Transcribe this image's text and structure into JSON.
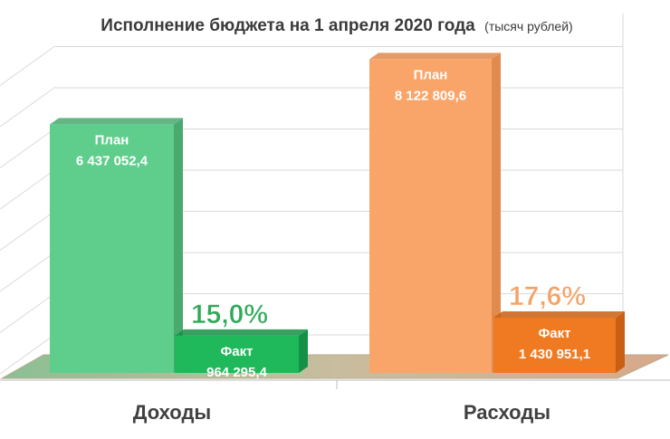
{
  "chart_data": {
    "type": "bar",
    "title": "Исполнение бюджета на 1 апреля 2020 года",
    "subtitle": "(тысяч рублей)",
    "categories": [
      "Доходы",
      "Расходы"
    ],
    "series": [
      {
        "name": "План",
        "values": [
          6437052.4,
          8122809.6
        ],
        "value_labels": [
          "6 437 052,4",
          "8 122 809,6"
        ]
      },
      {
        "name": "Факт",
        "values": [
          964295.4,
          1430951.1
        ],
        "value_labels": [
          "964 295,4",
          "1 430 951,1"
        ]
      }
    ],
    "percent_labels": [
      "15,0%",
      "17,6%"
    ],
    "ylim": [
      0,
      9000000
    ],
    "grid": true,
    "legend": "none"
  },
  "colors": {
    "income_plan": "#5fce8c",
    "income_plan_dark": "#49a96f",
    "income_fact": "#1fb85a",
    "income_fact_dark": "#159146",
    "income_pct": "#2faa58",
    "expense_plan": "#f9a56a",
    "expense_plan_dark": "#e08a4e",
    "expense_fact": "#f07a22",
    "expense_fact_dark": "#c85f13",
    "expense_pct": "#f2a36a",
    "floor": "#c7b69a",
    "grid": "#d9d9d9",
    "axis_text": "#404040"
  }
}
